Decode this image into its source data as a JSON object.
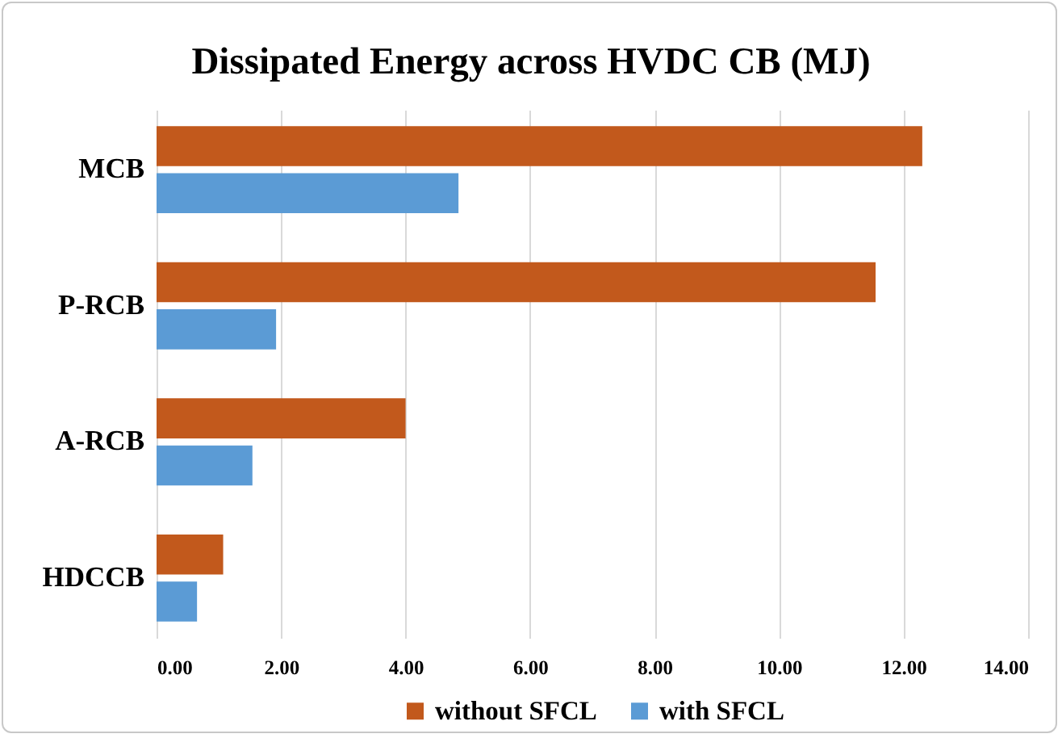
{
  "chart_data": {
    "type": "bar",
    "orientation": "horizontal",
    "title": "Dissipated Energy across HVDC CB (MJ)",
    "categories": [
      "MCB",
      "P-RCB",
      "A-RCB",
      "HDCCB"
    ],
    "series": [
      {
        "name": "without SFCL",
        "color": "#c2591c",
        "values": [
          12.3,
          11.55,
          4.0,
          1.07
        ]
      },
      {
        "name": "with SFCL",
        "color": "#5b9bd5",
        "values": [
          4.85,
          1.92,
          1.54,
          0.65
        ]
      }
    ],
    "xlim": [
      0,
      14
    ],
    "xticks": [
      {
        "value": 0,
        "label": "0.00"
      },
      {
        "value": 2,
        "label": "2.00"
      },
      {
        "value": 4,
        "label": "4.00"
      },
      {
        "value": 6,
        "label": "6.00"
      },
      {
        "value": 8,
        "label": "8.00"
      },
      {
        "value": 10,
        "label": "10.00"
      },
      {
        "value": 12,
        "label": "12.00"
      },
      {
        "value": 14,
        "label": "14.00"
      }
    ],
    "grid": "x",
    "legend": "bottom"
  }
}
